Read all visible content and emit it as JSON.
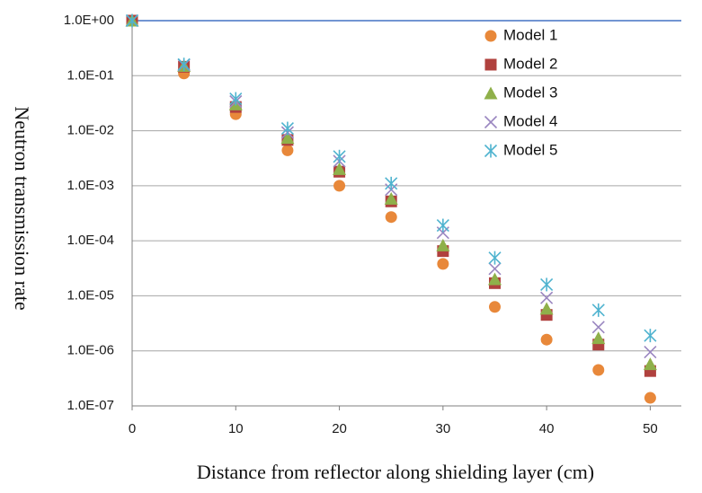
{
  "chart_data": {
    "type": "scatter",
    "title": "",
    "xlabel": "Distance from reflector along shielding layer (cm)",
    "ylabel": "Neutron transmission rate",
    "xlim": [
      0,
      53
    ],
    "ylim": [
      1e-07,
      1
    ],
    "y_scale": "log",
    "x_ticks": [
      0,
      10,
      20,
      30,
      40,
      50
    ],
    "x_tick_labels": [
      "0",
      "10",
      "20",
      "30",
      "40",
      "50"
    ],
    "y_ticks": [
      1,
      0.1,
      0.01,
      0.001,
      0.0001,
      1e-05,
      1e-06,
      1e-07
    ],
    "y_tick_labels": [
      "1.0E+00",
      "1.0E-01",
      "1.0E-02",
      "1.0E-03",
      "1.0E-04",
      "1.0E-05",
      "1.0E-06",
      "1.0E-07"
    ],
    "grid": "horizontal",
    "legend_position": "top-right",
    "x": [
      0,
      5,
      10,
      15,
      20,
      25,
      30,
      35,
      40,
      45,
      50
    ],
    "series": [
      {
        "name": "Model 1",
        "marker": "circle",
        "color": "#e8883a",
        "values": [
          1.0,
          0.11,
          0.02,
          0.0044,
          0.001,
          0.00027,
          3.8e-05,
          6.3e-06,
          1.6e-06,
          4.5e-07,
          1.4e-07
        ]
      },
      {
        "name": "Model 2",
        "marker": "square",
        "color": "#b0413e",
        "values": [
          1.0,
          0.145,
          0.027,
          0.0068,
          0.0018,
          0.00052,
          6.5e-05,
          1.7e-05,
          4.5e-06,
          1.3e-06,
          4.3e-07
        ]
      },
      {
        "name": "Model 3",
        "marker": "triangle",
        "color": "#8fb04a",
        "values": [
          1.0,
          0.15,
          0.03,
          0.0074,
          0.002,
          0.00058,
          8.2e-05,
          2e-05,
          5.8e-06,
          1.7e-06,
          5.7e-07
        ]
      },
      {
        "name": "Model 4",
        "marker": "x",
        "color": "#9a86c0",
        "values": [
          1.0,
          0.155,
          0.034,
          0.0093,
          0.0028,
          0.00085,
          0.00014,
          3.1e-05,
          9.2e-06,
          2.7e-06,
          9.5e-07
        ]
      },
      {
        "name": "Model 5",
        "marker": "asterisk",
        "color": "#4fb3cf",
        "values": [
          1.0,
          0.16,
          0.038,
          0.011,
          0.0034,
          0.0011,
          0.00019,
          4.9e-05,
          1.6e-05,
          5.5e-06,
          1.9e-06
        ]
      }
    ]
  },
  "colors": {
    "top_line": "#4472c4",
    "gridline": "#a6a6a6",
    "axis": "#7f7f7f"
  }
}
